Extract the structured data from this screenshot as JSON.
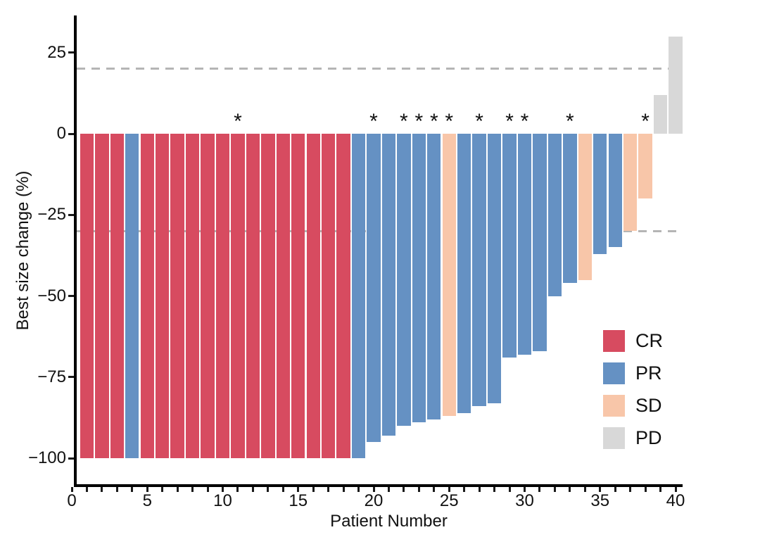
{
  "chart_data": {
    "type": "bar",
    "title": "",
    "xlabel": "Patient Number",
    "ylabel": "Best size change (%)",
    "x_axis": {
      "min": 0,
      "max": 40,
      "major_tick_step": 5,
      "minor_tick_step": 1,
      "tick_labels": [
        "0",
        "5",
        "10",
        "15",
        "20",
        "25",
        "30",
        "35",
        "40"
      ]
    },
    "y_axis": {
      "ticks": [
        25,
        0,
        -25,
        -50,
        -75,
        -100
      ],
      "tick_labels": [
        "25",
        "0",
        "−25",
        "−50",
        "−75",
        "−100"
      ],
      "range": [
        -108,
        36
      ]
    },
    "reference_lines": {
      "values": [
        20,
        -30
      ],
      "style": "dashed",
      "color": "#b5b5b5"
    },
    "annotation_symbol": "*",
    "legend": {
      "position": "right",
      "entries": [
        {
          "label": "CR",
          "color": "#d74b60"
        },
        {
          "label": "PR",
          "color": "#6591c3"
        },
        {
          "label": "SD",
          "color": "#f8c6a9"
        },
        {
          "label": "PD",
          "color": "#d8d8d8"
        }
      ]
    },
    "series_colors": {
      "CR": "#d74b60",
      "PR": "#6591c3",
      "SD": "#f8c6a9",
      "PD": "#d8d8d8"
    },
    "patients": [
      {
        "n": 1,
        "value": -100,
        "response": "CR",
        "asterisk": false
      },
      {
        "n": 2,
        "value": -100,
        "response": "CR",
        "asterisk": false
      },
      {
        "n": 3,
        "value": -100,
        "response": "CR",
        "asterisk": false
      },
      {
        "n": 4,
        "value": -100,
        "response": "PR",
        "asterisk": false
      },
      {
        "n": 5,
        "value": -100,
        "response": "CR",
        "asterisk": false
      },
      {
        "n": 6,
        "value": -100,
        "response": "CR",
        "asterisk": false
      },
      {
        "n": 7,
        "value": -100,
        "response": "CR",
        "asterisk": false
      },
      {
        "n": 8,
        "value": -100,
        "response": "CR",
        "asterisk": false
      },
      {
        "n": 9,
        "value": -100,
        "response": "CR",
        "asterisk": false
      },
      {
        "n": 10,
        "value": -100,
        "response": "CR",
        "asterisk": false
      },
      {
        "n": 11,
        "value": -100,
        "response": "CR",
        "asterisk": true
      },
      {
        "n": 12,
        "value": -100,
        "response": "CR",
        "asterisk": false
      },
      {
        "n": 13,
        "value": -100,
        "response": "CR",
        "asterisk": false
      },
      {
        "n": 14,
        "value": -100,
        "response": "CR",
        "asterisk": false
      },
      {
        "n": 15,
        "value": -100,
        "response": "CR",
        "asterisk": false
      },
      {
        "n": 16,
        "value": -100,
        "response": "CR",
        "asterisk": false
      },
      {
        "n": 17,
        "value": -100,
        "response": "CR",
        "asterisk": false
      },
      {
        "n": 18,
        "value": -100,
        "response": "CR",
        "asterisk": false
      },
      {
        "n": 19,
        "value": -100,
        "response": "PR",
        "asterisk": false
      },
      {
        "n": 20,
        "value": -95,
        "response": "PR",
        "asterisk": true
      },
      {
        "n": 21,
        "value": -93,
        "response": "PR",
        "asterisk": false
      },
      {
        "n": 22,
        "value": -90,
        "response": "PR",
        "asterisk": true
      },
      {
        "n": 23,
        "value": -89,
        "response": "PR",
        "asterisk": true
      },
      {
        "n": 24,
        "value": -88,
        "response": "PR",
        "asterisk": true
      },
      {
        "n": 25,
        "value": -87,
        "response": "SD",
        "asterisk": true
      },
      {
        "n": 26,
        "value": -86,
        "response": "PR",
        "asterisk": false
      },
      {
        "n": 27,
        "value": -84,
        "response": "PR",
        "asterisk": true
      },
      {
        "n": 28,
        "value": -83,
        "response": "PR",
        "asterisk": false
      },
      {
        "n": 29,
        "value": -69,
        "response": "PR",
        "asterisk": true
      },
      {
        "n": 30,
        "value": -68,
        "response": "PR",
        "asterisk": true
      },
      {
        "n": 31,
        "value": -67,
        "response": "PR",
        "asterisk": false
      },
      {
        "n": 32,
        "value": -50,
        "response": "PR",
        "asterisk": false
      },
      {
        "n": 33,
        "value": -46,
        "response": "PR",
        "asterisk": true
      },
      {
        "n": 34,
        "value": -45,
        "response": "SD",
        "asterisk": false
      },
      {
        "n": 35,
        "value": -37,
        "response": "PR",
        "asterisk": false
      },
      {
        "n": 36,
        "value": -35,
        "response": "PR",
        "asterisk": false
      },
      {
        "n": 37,
        "value": -30,
        "response": "SD",
        "asterisk": false
      },
      {
        "n": 38,
        "value": -20,
        "response": "SD",
        "asterisk": true
      },
      {
        "n": 39,
        "value": 12,
        "response": "PD",
        "asterisk": false
      },
      {
        "n": 40,
        "value": 30,
        "response": "PD",
        "asterisk": false
      }
    ]
  }
}
